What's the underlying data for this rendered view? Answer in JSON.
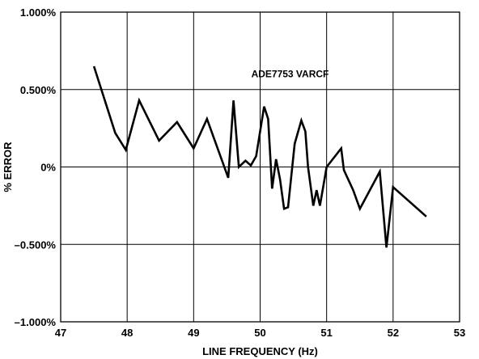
{
  "chart_data": {
    "type": "line",
    "title": "",
    "xlabel": "LINE FREQUENCY (Hz)",
    "ylabel": "% ERROR",
    "xlim": [
      47,
      53
    ],
    "ylim": [
      -1.0,
      1.0
    ],
    "grid": true,
    "x_ticks": [
      47,
      48,
      49,
      50,
      51,
      52,
      53
    ],
    "x_tick_labels": [
      "47",
      "48",
      "49",
      "50",
      "51",
      "52",
      "53"
    ],
    "y_ticks": [
      1.0,
      0.5,
      0,
      -0.5,
      -1.0
    ],
    "y_tick_labels": [
      "1.000%",
      "0.500%",
      "0%",
      "–0.500%",
      "–1.000%"
    ],
    "annotations": [
      {
        "text": "ADE7753 VARCF",
        "x": 50.45,
        "y": 0.58
      }
    ],
    "series": [
      {
        "x": [
          47.5,
          47.82,
          47.98,
          48.18,
          48.48,
          48.75,
          49.0,
          49.2,
          49.52,
          49.6,
          49.68,
          49.78,
          49.86,
          49.94,
          50.06,
          50.12,
          50.18,
          50.24,
          50.3,
          50.36,
          50.42,
          50.52,
          50.62,
          50.68,
          50.72,
          50.8,
          50.85,
          50.9,
          51.0,
          51.22,
          51.26,
          51.4,
          51.5,
          51.8,
          51.9,
          52.0,
          52.5
        ],
        "y": [
          0.65,
          0.22,
          0.11,
          0.43,
          0.17,
          0.29,
          0.12,
          0.31,
          -0.07,
          0.43,
          0.0,
          0.04,
          0.01,
          0.07,
          0.39,
          0.31,
          -0.14,
          0.05,
          -0.08,
          -0.27,
          -0.26,
          0.15,
          0.3,
          0.23,
          0.0,
          -0.25,
          -0.15,
          -0.25,
          0.0,
          0.12,
          -0.02,
          -0.15,
          -0.27,
          -0.03,
          -0.52,
          -0.13,
          -0.32
        ]
      }
    ]
  }
}
